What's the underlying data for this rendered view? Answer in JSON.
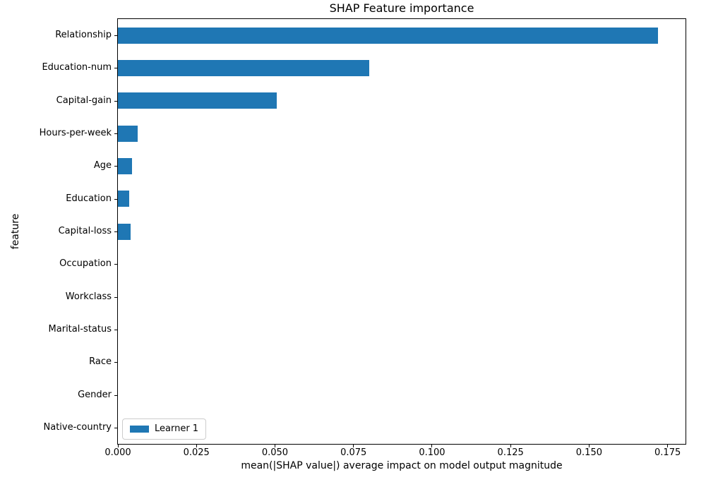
{
  "chart_data": {
    "type": "bar",
    "orientation": "horizontal",
    "title": "SHAP Feature importance",
    "xlabel": "mean(|SHAP value|) average impact on model output magnitude",
    "ylabel": "feature",
    "categories": [
      "Relationship",
      "Education-num",
      "Capital-gain",
      "Hours-per-week",
      "Age",
      "Education",
      "Capital-loss",
      "Occupation",
      "Workclass",
      "Marital-status",
      "Race",
      "Gender",
      "Native-country"
    ],
    "series": [
      {
        "name": "Learner 1",
        "color": "#1f77b4",
        "values": [
          0.172,
          0.08,
          0.0505,
          0.0063,
          0.0046,
          0.0037,
          0.004,
          0,
          0,
          0,
          0,
          0,
          0
        ]
      }
    ],
    "xlim": [
      0,
      0.1807
    ],
    "xticks": [
      0,
      0.025,
      0.05,
      0.075,
      0.1,
      0.125,
      0.15,
      0.175
    ],
    "xtick_labels": [
      "0.000",
      "0.025",
      "0.050",
      "0.075",
      "0.100",
      "0.125",
      "0.150",
      "0.175"
    ],
    "legend": {
      "label": "Learner 1",
      "position": "lower-left"
    },
    "grid": false,
    "background": "#ffffff"
  }
}
